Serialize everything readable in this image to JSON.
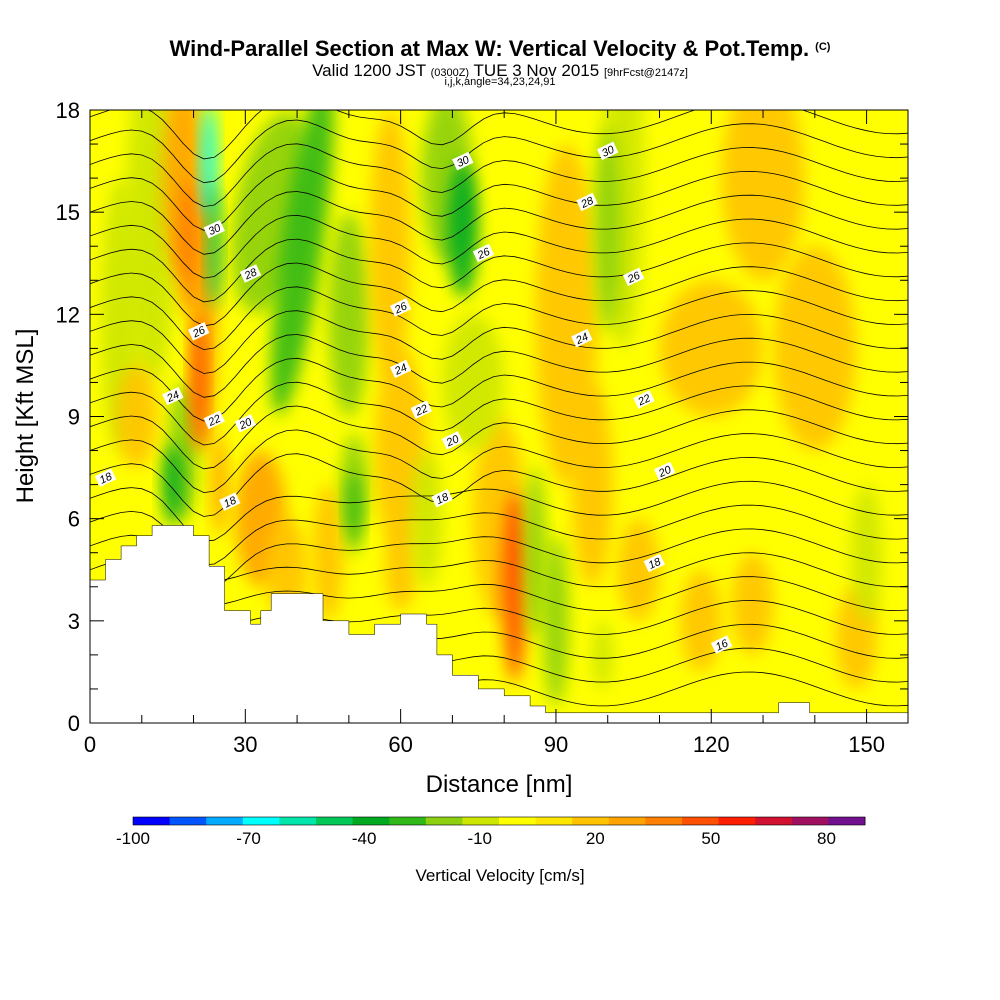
{
  "titles": {
    "main": "Wind-Parallel Section at Max W: Vertical Velocity & Pot.Temp.",
    "main_mark": "(C)",
    "valid_a": "Valid 1200 JST",
    "valid_z": "(0300Z)",
    "valid_b": "TUE 3 Nov 2015",
    "fcst": "[9hrFcst@2147z]",
    "params": "i,j,k,angle=34,23,24,91"
  },
  "chart_data": {
    "type": "heatmap",
    "title": "Wind-Parallel Section at Max W: Vertical Velocity & Pot.Temp.",
    "xlabel": "Distance [nm]",
    "ylabel": "Height [Kft MSL]",
    "xlim": [
      0,
      158
    ],
    "ylim": [
      0,
      18
    ],
    "xticks": [
      0,
      30,
      60,
      90,
      120,
      150
    ],
    "yticks": [
      0,
      3,
      6,
      9,
      12,
      15,
      18
    ],
    "colorbar": {
      "label": "Vertical Velocity [cm/s]",
      "tick_labels": [
        "-100",
        "-70",
        "-40",
        "-10",
        "20",
        "50",
        "80"
      ],
      "tick_values": [
        -100,
        -70,
        -40,
        -10,
        20,
        50,
        80
      ],
      "range": [
        -100,
        90
      ],
      "colors": [
        "#0000ff",
        "#0055ff",
        "#00aaff",
        "#00ffff",
        "#00e6aa",
        "#00c857",
        "#00aa20",
        "#30b818",
        "#8cd010",
        "#cde600",
        "#ffff00",
        "#ffe600",
        "#ffc300",
        "#ffa300",
        "#ff7f00",
        "#ff5000",
        "#ff1e00",
        "#d21030",
        "#a01060",
        "#70108c"
      ]
    },
    "theta_contours": {
      "units": "C",
      "labeled_levels": [
        16,
        18,
        20,
        22,
        24,
        26,
        28,
        30
      ]
    },
    "terrain_kft": {
      "x": [
        0,
        3,
        6,
        9,
        12,
        16,
        20,
        23,
        26,
        28,
        31,
        33,
        35,
        40,
        45,
        50,
        53,
        55,
        60,
        65,
        67,
        70,
        75,
        80,
        85,
        88,
        90,
        110,
        133,
        139,
        140,
        158
      ],
      "h": [
        4.2,
        4.8,
        5.2,
        5.5,
        5.8,
        5.8,
        5.5,
        4.6,
        3.3,
        3.3,
        2.9,
        3.3,
        3.8,
        3.8,
        3.0,
        2.6,
        2.6,
        2.9,
        3.2,
        2.9,
        2.0,
        1.4,
        1.0,
        0.8,
        0.5,
        0.3,
        0.3,
        0.3,
        0.6,
        0.3,
        0.3,
        0.3
      ]
    },
    "vertical_velocity_features": [
      {
        "x": 23,
        "y": 16,
        "w": -70,
        "kind": "downdraft"
      },
      {
        "x": 17,
        "y": 8,
        "w": -40,
        "kind": "downdraft"
      },
      {
        "x": 21,
        "y": 11,
        "w": 45,
        "kind": "updraft"
      },
      {
        "x": 72,
        "y": 14.5,
        "w": -40,
        "kind": "downdraft"
      },
      {
        "x": 40,
        "y": 15,
        "w": -25,
        "kind": "downdraft"
      },
      {
        "x": 82,
        "y": 4,
        "w": 45,
        "kind": "updraft"
      },
      {
        "x": 51,
        "y": 7,
        "w": -30,
        "kind": "downdraft"
      },
      {
        "x": 88,
        "y": 3.5,
        "w": -15,
        "kind": "downdraft"
      },
      {
        "x": 100,
        "y": 14.5,
        "w": -15,
        "kind": "downdraft"
      }
    ]
  }
}
